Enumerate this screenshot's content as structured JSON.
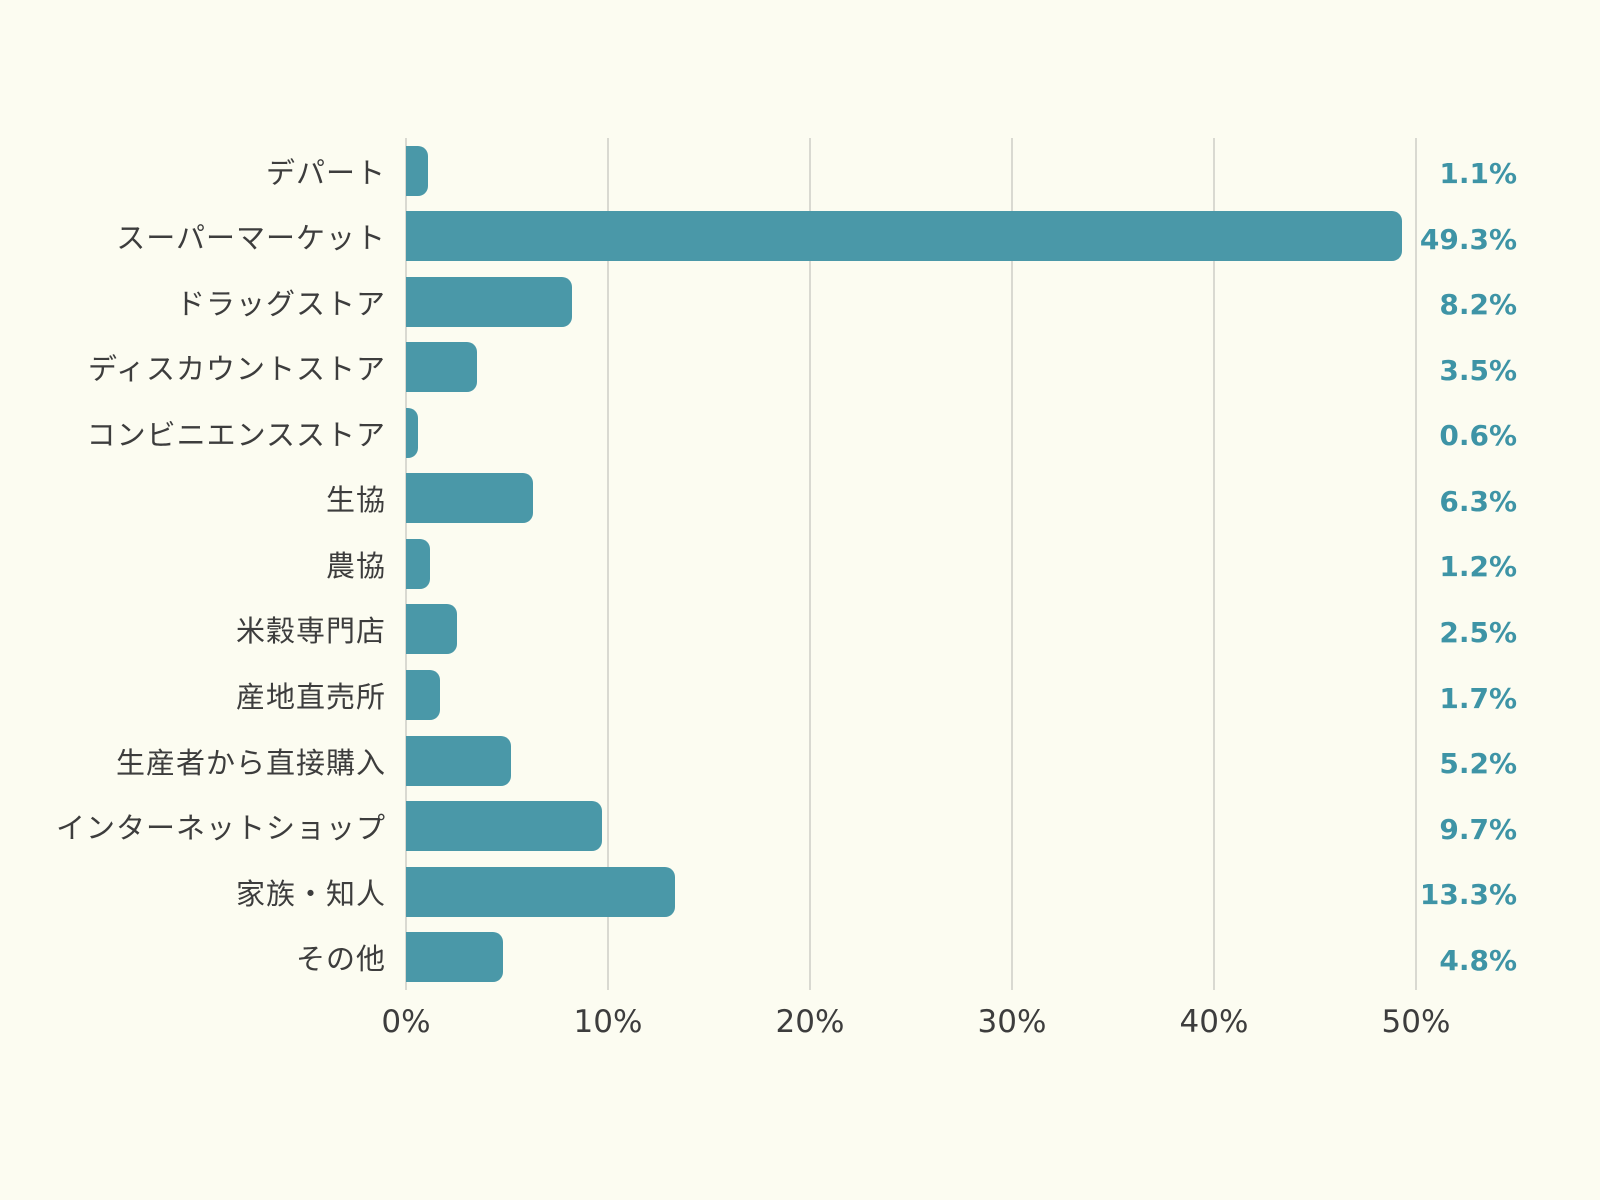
{
  "chart_data": {
    "type": "bar",
    "orientation": "horizontal",
    "title": "",
    "categories": [
      "デパート",
      "スーパーマーケット",
      "ドラッグストア",
      "ディスカウントストア",
      "コンビニエンスストア",
      "生協",
      "農協",
      "米穀専門店",
      "産地直売所",
      "生産者から直接購入",
      "インターネットショップ",
      "家族・知人",
      "その他"
    ],
    "values": [
      1.1,
      49.3,
      8.2,
      3.5,
      0.6,
      6.3,
      1.2,
      2.5,
      1.7,
      5.2,
      9.7,
      13.3,
      4.8
    ],
    "value_labels": [
      "1.1%",
      "49.3%",
      "8.2%",
      "3.5%",
      "0.6%",
      "6.3%",
      "1.2%",
      "2.5%",
      "1.7%",
      "5.2%",
      "9.7%",
      "13.3%",
      "4.8%"
    ],
    "x_ticks": [
      "0%",
      "10%",
      "20%",
      "30%",
      "40%",
      "50%"
    ],
    "xlim": [
      0,
      50
    ],
    "grid": true,
    "legend_position": "none",
    "colors": {
      "bar": "#4a98a8",
      "value_label": "#3e94a6",
      "category_label": "#3d3d3d",
      "tick_label": "#3d3d3d",
      "gridline": "#d9d9d1",
      "background": "#fcfcf1"
    }
  }
}
